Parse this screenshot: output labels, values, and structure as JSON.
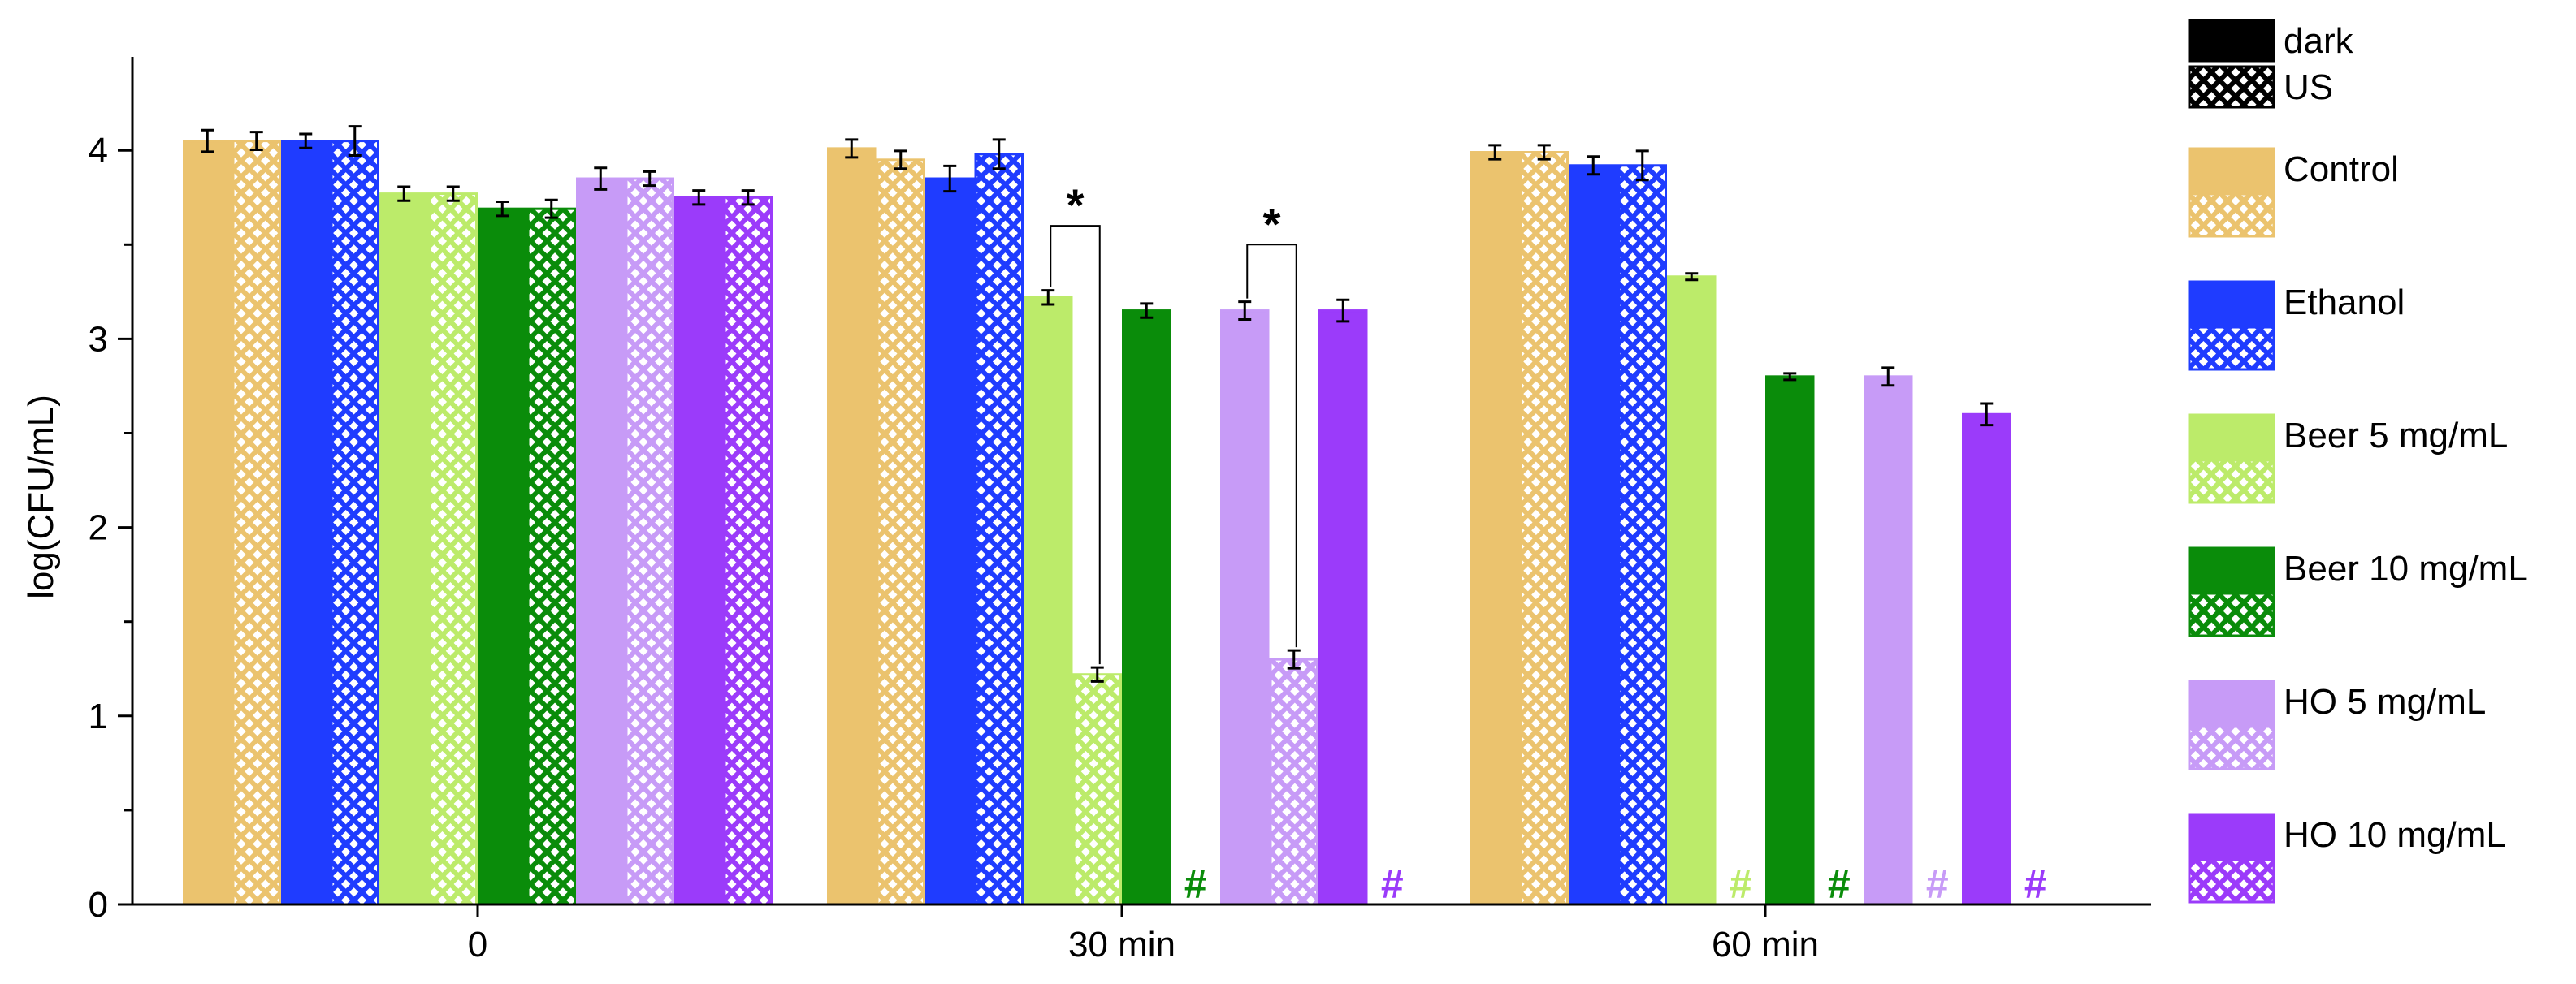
{
  "chart_data": {
    "type": "bar",
    "ylabel": "log(CFU/mL)",
    "xlabel": "",
    "title": "",
    "ylim": [
      0,
      4.5
    ],
    "y_major_ticks": [
      0,
      1,
      2,
      3,
      4
    ],
    "categories": [
      "0",
      "30 min",
      "60 min"
    ],
    "treatment_legend": [
      {
        "name": "dark",
        "pattern": "solid"
      },
      {
        "name": "US",
        "pattern": "crosshatch"
      }
    ],
    "series": [
      {
        "group": "Control",
        "color": "#EBC36E",
        "dark": {
          "values": [
            4.05,
            4.01,
            3.99
          ],
          "errors": [
            0.04,
            0.03,
            0.02
          ]
        },
        "us": {
          "values": [
            4.05,
            3.95,
            3.99
          ],
          "errors": [
            0.03,
            0.03,
            0.02
          ]
        }
      },
      {
        "group": "Ethanol",
        "color": "#1F3CFF",
        "dark": {
          "values": [
            4.05,
            3.85,
            3.92
          ],
          "errors": [
            0.02,
            0.05,
            0.03
          ]
        },
        "us": {
          "values": [
            4.05,
            3.98,
            3.92
          ],
          "errors": [
            0.06,
            0.06,
            0.06
          ]
        }
      },
      {
        "group": "Beer 5 mg/mL",
        "color": "#BCEB6A",
        "dark": {
          "values": [
            3.77,
            3.22,
            3.33
          ],
          "errors": [
            0.02,
            0.02,
            0.0
          ]
        },
        "us": {
          "values": [
            3.77,
            1.22,
            null
          ],
          "errors": [
            0.02,
            0.02,
            null
          ]
        }
      },
      {
        "group": "Beer 10 mg/mL",
        "color": "#0A8C0A",
        "dark": {
          "values": [
            3.69,
            3.15,
            2.8
          ],
          "errors": [
            0.02,
            0.02,
            0.0
          ]
        },
        "us": {
          "values": [
            3.69,
            null,
            null
          ],
          "errors": [
            0.03,
            null,
            null
          ]
        }
      },
      {
        "group": "HO 5 mg/mL",
        "color": "#C79BF7",
        "dark": {
          "values": [
            3.85,
            3.15,
            2.8
          ],
          "errors": [
            0.04,
            0.03,
            0.03
          ]
        },
        "us": {
          "values": [
            3.85,
            1.3,
            null
          ],
          "errors": [
            0.02,
            0.03,
            null
          ]
        }
      },
      {
        "group": "HO 10 mg/mL",
        "color": "#9B3BFA",
        "dark": {
          "values": [
            3.75,
            3.15,
            2.6
          ],
          "errors": [
            0.02,
            0.04,
            0.04
          ]
        },
        "us": {
          "values": [
            3.75,
            null,
            null
          ],
          "errors": [
            0.02,
            null,
            null
          ]
        }
      }
    ],
    "not_detected_marker": "#",
    "not_detected": [
      {
        "category": "30 min",
        "group": "Beer 10 mg/mL"
      },
      {
        "category": "30 min",
        "group": "HO 10 mg/mL"
      },
      {
        "category": "60 min",
        "group": "Beer 5 mg/mL"
      },
      {
        "category": "60 min",
        "group": "Beer 10 mg/mL"
      },
      {
        "category": "60 min",
        "group": "HO 5 mg/mL"
      },
      {
        "category": "60 min",
        "group": "HO 10 mg/mL"
      }
    ],
    "significance_marker": "*",
    "significance": [
      {
        "category": "30 min",
        "group": "Beer 5 mg/mL",
        "bracket_top": 3.6
      },
      {
        "category": "30 min",
        "group": "HO 5 mg/mL",
        "bracket_top": 3.5
      }
    ],
    "legend_position": "right"
  }
}
